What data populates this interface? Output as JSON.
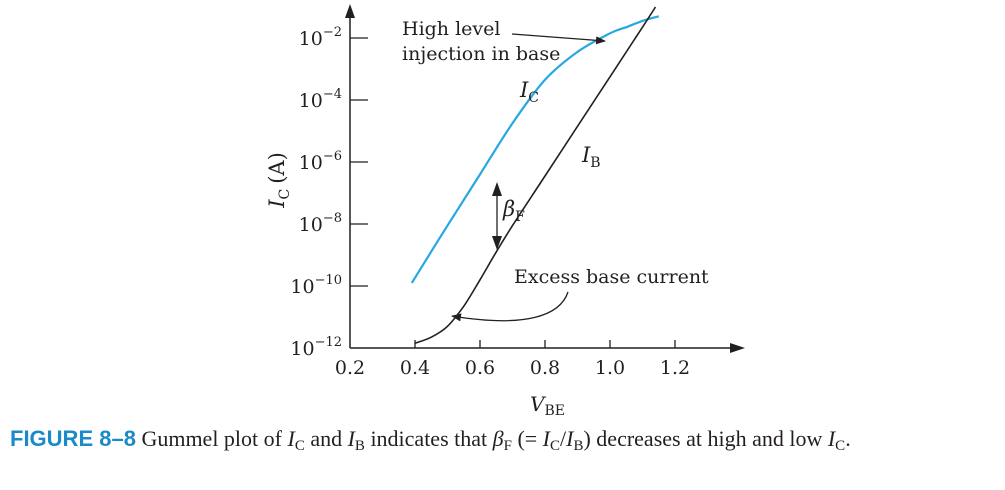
{
  "chart_data": {
    "type": "line",
    "x_label_main": "V",
    "x_label_sub": "BE",
    "y_label_main": "I",
    "y_label_sub": "C",
    "y_label_unit": "(A)",
    "x_ticks": [
      0.2,
      0.4,
      0.6,
      0.8,
      1.0,
      1.2
    ],
    "x_tick_labels": [
      "0.2",
      "0.4",
      "0.6",
      "0.8",
      "1.0",
      "1.2"
    ],
    "y_ticks_exponent": [
      -2,
      -4,
      -6,
      -8,
      -10,
      -12
    ],
    "y_tick_base": "10",
    "y_tick_exponents": [
      "−2",
      "−4",
      "−6",
      "−8",
      "−10",
      "−12"
    ],
    "xlim": [
      0.2,
      1.35
    ],
    "ylim_log10": [
      -12,
      -1
    ],
    "y_scale": "log",
    "series": [
      {
        "name": "I_C",
        "label_main": "I",
        "label_sub": "C",
        "color": "#27a8e0",
        "x": [
          0.39,
          0.5,
          0.6,
          0.7,
          0.8,
          0.9,
          1.0,
          1.05,
          1.1,
          1.15
        ],
        "log10_y": [
          -9.9,
          -8.05,
          -6.4,
          -4.75,
          -3.35,
          -2.45,
          -1.85,
          -1.65,
          -1.45,
          -1.3
        ]
      },
      {
        "name": "I_B",
        "label_main": "I",
        "label_sub": "B",
        "color": "#231f20",
        "x": [
          0.4,
          0.45,
          0.5,
          0.55,
          0.6,
          0.65,
          0.7,
          0.8,
          0.9,
          1.0,
          1.1,
          1.14
        ],
        "log10_y": [
          -11.85,
          -11.65,
          -11.3,
          -10.65,
          -9.8,
          -8.9,
          -8.05,
          -6.45,
          -4.85,
          -3.25,
          -1.65,
          -1.0
        ]
      }
    ],
    "annotations": {
      "high_level_line1": "High level",
      "high_level_line2": "injection in base",
      "excess_base": "Excess base current",
      "beta_main": "β",
      "beta_sub": "F"
    }
  },
  "caption": {
    "label": "FIGURE 8–8",
    "p1": " Gummel plot of ",
    "ic_main": "I",
    "ic_sub": "C",
    "p2": " and ",
    "ib_main": "I",
    "ib_sub": "B",
    "p3": " indicates that ",
    "beta_main": "β",
    "beta_sub": "F",
    "p4": " (= ",
    "r_ic_main": "I",
    "r_ic_sub": "C",
    "slash": "/",
    "r_ib_main": "I",
    "r_ib_sub": "B",
    "p5": ") decreases at high and low ",
    "end_ic_main": "I",
    "end_ic_sub": "C",
    "p6": "."
  }
}
